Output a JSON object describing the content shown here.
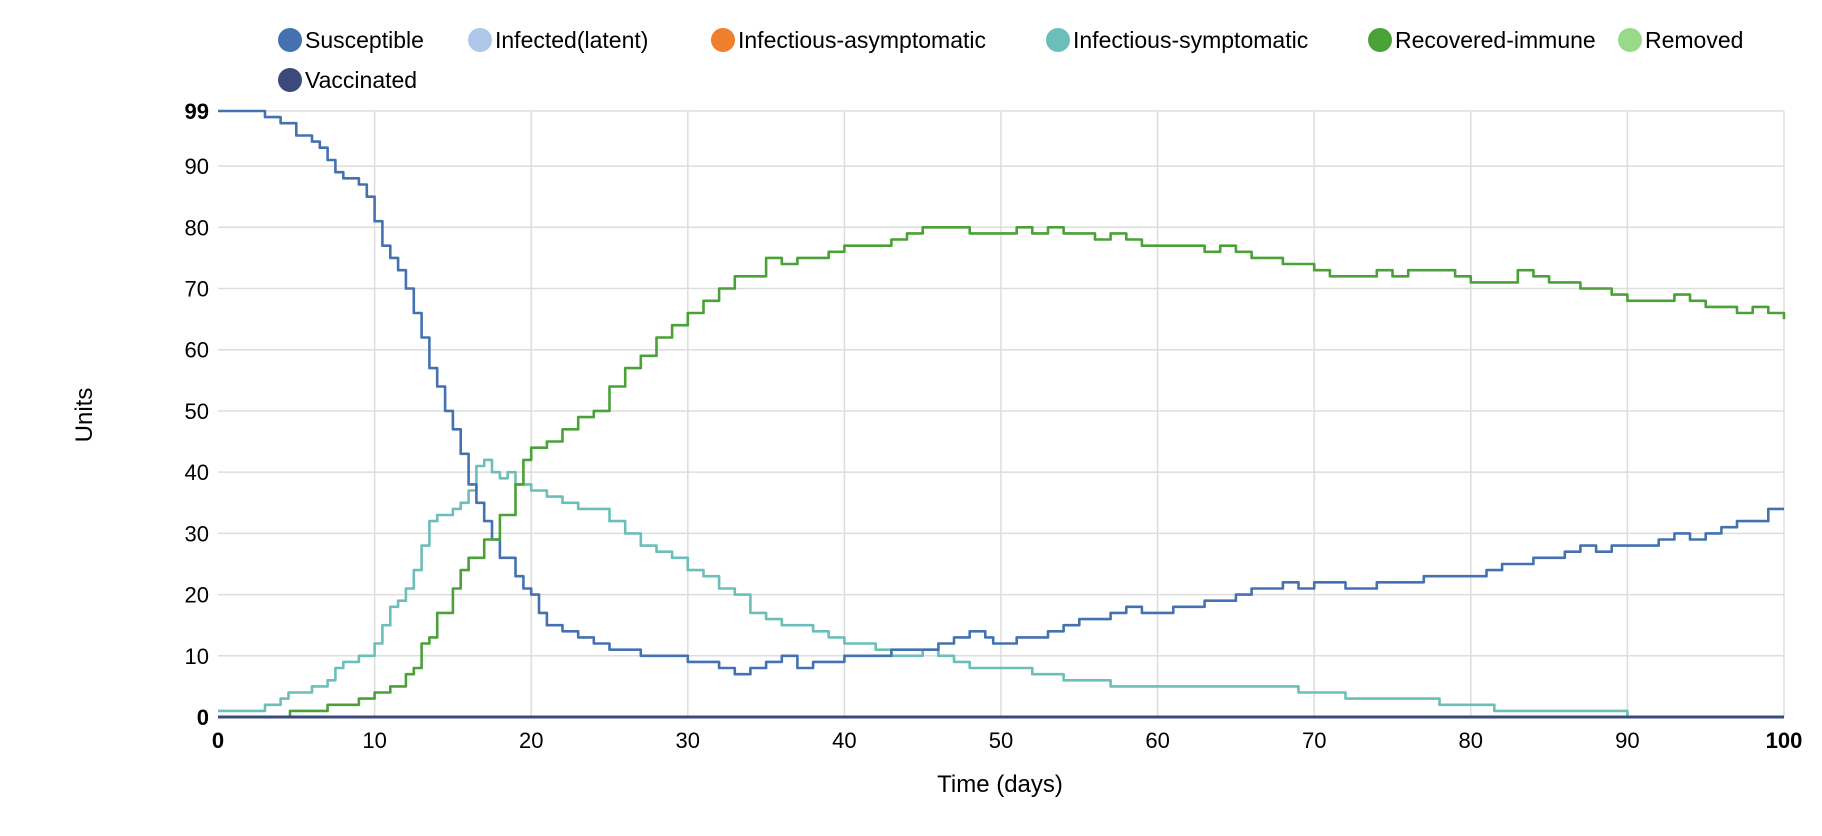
{
  "chart_data": {
    "type": "line",
    "title": "",
    "xlabel": "Time (days)",
    "ylabel": "Units",
    "xlim": [
      0,
      100
    ],
    "ylim": [
      0,
      99
    ],
    "x_ticks": [
      0,
      10,
      20,
      30,
      40,
      50,
      60,
      70,
      80,
      90,
      100
    ],
    "x_tick_labels": [
      "0",
      "10",
      "20",
      "30",
      "40",
      "50",
      "60",
      "70",
      "80",
      "90",
      "100"
    ],
    "y_ticks": [
      0,
      10,
      20,
      30,
      40,
      50,
      60,
      70,
      80,
      90,
      99
    ],
    "y_tick_labels": [
      "0",
      "10",
      "20",
      "30",
      "40",
      "50",
      "60",
      "70",
      "80",
      "90",
      "99"
    ],
    "legend_position": "top",
    "grid": true,
    "series": [
      {
        "name": "Susceptible",
        "color": "#4472b0",
        "points": [
          [
            0,
            99
          ],
          [
            1.5,
            99
          ],
          [
            3,
            98
          ],
          [
            4,
            97
          ],
          [
            5,
            95
          ],
          [
            6,
            94
          ],
          [
            6.5,
            93
          ],
          [
            7,
            91
          ],
          [
            7.5,
            89
          ],
          [
            8,
            88
          ],
          [
            9,
            87
          ],
          [
            9.5,
            85
          ],
          [
            10,
            81
          ],
          [
            10.5,
            77
          ],
          [
            11,
            75
          ],
          [
            11.5,
            73
          ],
          [
            12,
            70
          ],
          [
            12.5,
            66
          ],
          [
            13,
            62
          ],
          [
            13.5,
            57
          ],
          [
            14,
            54
          ],
          [
            14.5,
            50
          ],
          [
            15,
            47
          ],
          [
            15.5,
            43
          ],
          [
            16,
            38
          ],
          [
            16.5,
            35
          ],
          [
            17,
            32
          ],
          [
            17.5,
            29
          ],
          [
            18,
            26
          ],
          [
            19,
            23
          ],
          [
            19.5,
            21
          ],
          [
            20,
            20
          ],
          [
            20.5,
            17
          ],
          [
            21,
            15
          ],
          [
            22,
            14
          ],
          [
            23,
            13
          ],
          [
            24,
            12
          ],
          [
            25,
            11
          ],
          [
            26,
            11
          ],
          [
            27,
            10
          ],
          [
            28,
            10
          ],
          [
            29,
            10
          ],
          [
            30,
            9
          ],
          [
            31,
            9
          ],
          [
            32,
            8
          ],
          [
            33,
            7
          ],
          [
            34,
            8
          ],
          [
            35,
            9
          ],
          [
            36,
            10
          ],
          [
            37,
            8
          ],
          [
            38,
            9
          ],
          [
            39,
            9
          ],
          [
            40,
            10
          ],
          [
            41,
            10
          ],
          [
            42,
            10
          ],
          [
            43,
            11
          ],
          [
            44,
            11
          ],
          [
            45,
            11
          ],
          [
            46,
            12
          ],
          [
            47,
            13
          ],
          [
            48,
            14
          ],
          [
            49,
            13
          ],
          [
            49.5,
            12
          ],
          [
            50,
            12
          ],
          [
            51,
            13
          ],
          [
            52,
            13
          ],
          [
            53,
            14
          ],
          [
            54,
            15
          ],
          [
            55,
            16
          ],
          [
            56,
            16
          ],
          [
            57,
            17
          ],
          [
            58,
            18
          ],
          [
            59,
            17
          ],
          [
            60,
            17
          ],
          [
            61,
            18
          ],
          [
            62,
            18
          ],
          [
            63,
            19
          ],
          [
            64,
            19
          ],
          [
            65,
            20
          ],
          [
            66,
            21
          ],
          [
            67,
            21
          ],
          [
            68,
            22
          ],
          [
            69,
            21
          ],
          [
            70,
            22
          ],
          [
            71,
            22
          ],
          [
            72,
            21
          ],
          [
            73,
            21
          ],
          [
            74,
            22
          ],
          [
            75,
            22
          ],
          [
            76,
            22
          ],
          [
            77,
            23
          ],
          [
            78,
            23
          ],
          [
            79,
            23
          ],
          [
            80,
            23
          ],
          [
            81,
            24
          ],
          [
            82,
            25
          ],
          [
            83,
            25
          ],
          [
            84,
            26
          ],
          [
            85,
            26
          ],
          [
            86,
            27
          ],
          [
            87,
            28
          ],
          [
            88,
            27
          ],
          [
            89,
            28
          ],
          [
            90,
            28
          ],
          [
            91,
            28
          ],
          [
            92,
            29
          ],
          [
            93,
            30
          ],
          [
            94,
            29
          ],
          [
            95,
            30
          ],
          [
            96,
            31
          ],
          [
            97,
            32
          ],
          [
            98,
            32
          ],
          [
            99,
            34
          ],
          [
            100,
            34
          ]
        ]
      },
      {
        "name": "Infected(latent)",
        "color": "#aec7e8",
        "points": [
          [
            0,
            0
          ],
          [
            100,
            0
          ]
        ]
      },
      {
        "name": "Infectious-asymptomatic",
        "color": "#f07f2d",
        "points": [
          [
            0,
            0
          ],
          [
            100,
            0
          ]
        ]
      },
      {
        "name": "Infectious-symptomatic",
        "color": "#6bbfb8",
        "points": [
          [
            0,
            1
          ],
          [
            2,
            1
          ],
          [
            3,
            2
          ],
          [
            4,
            3
          ],
          [
            4.5,
            4
          ],
          [
            5,
            4
          ],
          [
            6,
            5
          ],
          [
            7,
            6
          ],
          [
            7.5,
            8
          ],
          [
            8,
            9
          ],
          [
            9,
            10
          ],
          [
            10,
            12
          ],
          [
            10.5,
            15
          ],
          [
            11,
            18
          ],
          [
            11.5,
            19
          ],
          [
            12,
            21
          ],
          [
            12.5,
            24
          ],
          [
            13,
            28
          ],
          [
            13.5,
            32
          ],
          [
            14,
            33
          ],
          [
            15,
            34
          ],
          [
            15.5,
            35
          ],
          [
            16,
            37
          ],
          [
            16.5,
            41
          ],
          [
            17,
            42
          ],
          [
            17.5,
            40
          ],
          [
            18,
            39
          ],
          [
            18.5,
            40
          ],
          [
            19,
            38
          ],
          [
            20,
            37
          ],
          [
            21,
            36
          ],
          [
            22,
            35
          ],
          [
            23,
            34
          ],
          [
            24,
            34
          ],
          [
            25,
            32
          ],
          [
            26,
            30
          ],
          [
            27,
            28
          ],
          [
            28,
            27
          ],
          [
            29,
            26
          ],
          [
            30,
            24
          ],
          [
            31,
            23
          ],
          [
            32,
            21
          ],
          [
            33,
            20
          ],
          [
            34,
            17
          ],
          [
            35,
            16
          ],
          [
            36,
            15
          ],
          [
            37,
            15
          ],
          [
            38,
            14
          ],
          [
            39,
            13
          ],
          [
            40,
            12
          ],
          [
            41,
            12
          ],
          [
            42,
            11
          ],
          [
            43,
            10
          ],
          [
            44,
            10
          ],
          [
            45,
            11
          ],
          [
            46,
            10
          ],
          [
            47,
            9
          ],
          [
            48,
            8
          ],
          [
            49,
            8
          ],
          [
            50,
            8
          ],
          [
            51,
            8
          ],
          [
            52,
            7
          ],
          [
            53,
            7
          ],
          [
            54,
            6
          ],
          [
            55,
            6
          ],
          [
            56,
            6
          ],
          [
            57,
            5
          ],
          [
            58,
            5
          ],
          [
            59,
            5
          ],
          [
            60,
            5
          ],
          [
            61,
            5
          ],
          [
            62,
            5
          ],
          [
            63,
            5
          ],
          [
            64,
            5
          ],
          [
            65,
            5
          ],
          [
            66,
            5
          ],
          [
            67,
            5
          ],
          [
            68,
            5
          ],
          [
            69,
            4
          ],
          [
            70,
            4
          ],
          [
            71,
            4
          ],
          [
            72,
            3
          ],
          [
            73,
            3
          ],
          [
            74,
            3
          ],
          [
            75,
            3
          ],
          [
            76,
            3
          ],
          [
            77,
            3
          ],
          [
            78,
            2
          ],
          [
            79,
            2
          ],
          [
            80,
            2
          ],
          [
            81,
            2
          ],
          [
            81.5,
            1
          ],
          [
            82,
            1
          ],
          [
            84,
            1
          ],
          [
            86,
            1
          ],
          [
            88,
            1
          ],
          [
            89.5,
            1
          ],
          [
            90,
            0
          ],
          [
            100,
            0
          ]
        ]
      },
      {
        "name": "Recovered-immune",
        "color": "#4aa137",
        "points": [
          [
            4.5,
            0
          ],
          [
            4.6,
            1
          ],
          [
            5,
            1
          ],
          [
            6,
            1
          ],
          [
            7,
            2
          ],
          [
            8,
            2
          ],
          [
            9,
            3
          ],
          [
            10,
            4
          ],
          [
            11,
            5
          ],
          [
            12,
            7
          ],
          [
            12.5,
            8
          ],
          [
            13,
            12
          ],
          [
            13.5,
            13
          ],
          [
            14,
            17
          ],
          [
            15,
            21
          ],
          [
            15.5,
            24
          ],
          [
            16,
            26
          ],
          [
            17,
            29
          ],
          [
            18,
            33
          ],
          [
            19,
            38
          ],
          [
            19.5,
            42
          ],
          [
            20,
            44
          ],
          [
            21,
            45
          ],
          [
            22,
            47
          ],
          [
            23,
            49
          ],
          [
            24,
            50
          ],
          [
            25,
            54
          ],
          [
            26,
            57
          ],
          [
            27,
            59
          ],
          [
            28,
            62
          ],
          [
            29,
            64
          ],
          [
            30,
            66
          ],
          [
            31,
            68
          ],
          [
            32,
            70
          ],
          [
            33,
            72
          ],
          [
            34,
            72
          ],
          [
            35,
            75
          ],
          [
            36,
            74
          ],
          [
            37,
            75
          ],
          [
            38,
            75
          ],
          [
            39,
            76
          ],
          [
            40,
            77
          ],
          [
            41,
            77
          ],
          [
            42,
            77
          ],
          [
            43,
            78
          ],
          [
            44,
            79
          ],
          [
            45,
            80
          ],
          [
            46,
            80
          ],
          [
            47,
            80
          ],
          [
            48,
            79
          ],
          [
            49,
            79
          ],
          [
            50,
            79
          ],
          [
            51,
            80
          ],
          [
            52,
            79
          ],
          [
            53,
            80
          ],
          [
            54,
            79
          ],
          [
            55,
            79
          ],
          [
            56,
            78
          ],
          [
            57,
            79
          ],
          [
            58,
            78
          ],
          [
            59,
            77
          ],
          [
            60,
            77
          ],
          [
            61,
            77
          ],
          [
            62,
            77
          ],
          [
            63,
            76
          ],
          [
            64,
            77
          ],
          [
            65,
            76
          ],
          [
            66,
            75
          ],
          [
            67,
            75
          ],
          [
            68,
            74
          ],
          [
            69,
            74
          ],
          [
            70,
            73
          ],
          [
            71,
            72
          ],
          [
            72,
            72
          ],
          [
            73,
            72
          ],
          [
            74,
            73
          ],
          [
            75,
            72
          ],
          [
            76,
            73
          ],
          [
            77,
            73
          ],
          [
            78,
            73
          ],
          [
            79,
            72
          ],
          [
            80,
            71
          ],
          [
            81,
            71
          ],
          [
            82,
            71
          ],
          [
            83,
            73
          ],
          [
            84,
            72
          ],
          [
            85,
            71
          ],
          [
            86,
            71
          ],
          [
            87,
            70
          ],
          [
            88,
            70
          ],
          [
            89,
            69
          ],
          [
            90,
            68
          ],
          [
            91,
            68
          ],
          [
            92,
            68
          ],
          [
            93,
            69
          ],
          [
            94,
            68
          ],
          [
            95,
            67
          ],
          [
            96,
            67
          ],
          [
            97,
            66
          ],
          [
            98,
            67
          ],
          [
            99,
            66
          ],
          [
            100,
            65
          ]
        ]
      },
      {
        "name": "Removed",
        "color": "#98d98a",
        "points": [
          [
            0,
            0
          ],
          [
            100,
            0
          ]
        ]
      },
      {
        "name": "Vaccinated",
        "color": "#3b4a7a",
        "points": [
          [
            0,
            0
          ],
          [
            100,
            0
          ]
        ]
      }
    ],
    "legend": [
      "Susceptible",
      "Infected(latent)",
      "Infectious-asymptomatic",
      "Infectious-symptomatic",
      "Recovered-immune",
      "Removed",
      "Vaccinated"
    ]
  }
}
